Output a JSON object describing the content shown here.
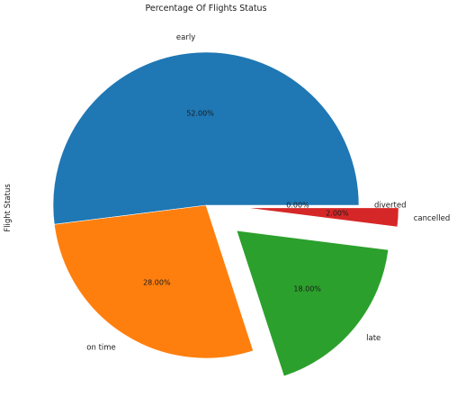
{
  "chart_data": {
    "type": "pie",
    "title": "Percentage Of Flights Status",
    "ylabel": "Flight Status",
    "categories": [
      "diverted",
      "early",
      "on time",
      "late",
      "cancelled"
    ],
    "values": [
      0.0,
      52.0,
      28.0,
      18.0,
      2.0
    ],
    "value_labels": [
      "0.00%",
      "52.00%",
      "28.00%",
      "18.00%",
      "2.00%"
    ],
    "exploded": [
      false,
      false,
      false,
      true,
      true
    ],
    "colors": [
      "#9467bd",
      "#1f77b4",
      "#ff7f0e",
      "#2ca02c",
      "#d62728"
    ],
    "legend": "none"
  }
}
